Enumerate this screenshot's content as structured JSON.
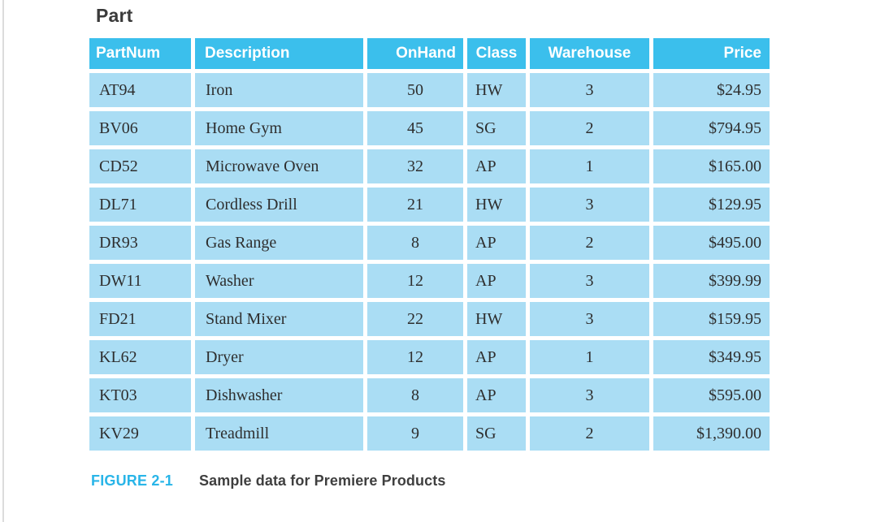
{
  "title": "Part",
  "table": {
    "columns": [
      {
        "key": "partnum",
        "label": "PartNum"
      },
      {
        "key": "description",
        "label": "Description"
      },
      {
        "key": "onhand",
        "label": "OnHand"
      },
      {
        "key": "class",
        "label": "Class"
      },
      {
        "key": "warehouse",
        "label": "Warehouse"
      },
      {
        "key": "price",
        "label": "Price"
      }
    ],
    "rows": [
      {
        "partnum": "AT94",
        "description": "Iron",
        "onhand": "50",
        "class": "HW",
        "warehouse": "3",
        "price": "$24.95"
      },
      {
        "partnum": "BV06",
        "description": "Home Gym",
        "onhand": "45",
        "class": "SG",
        "warehouse": "2",
        "price": "$794.95"
      },
      {
        "partnum": "CD52",
        "description": "Microwave Oven",
        "onhand": "32",
        "class": "AP",
        "warehouse": "1",
        "price": "$165.00"
      },
      {
        "partnum": "DL71",
        "description": "Cordless Drill",
        "onhand": "21",
        "class": "HW",
        "warehouse": "3",
        "price": "$129.95"
      },
      {
        "partnum": "DR93",
        "description": "Gas Range",
        "onhand": "8",
        "class": "AP",
        "warehouse": "2",
        "price": "$495.00"
      },
      {
        "partnum": "DW11",
        "description": "Washer",
        "onhand": "12",
        "class": "AP",
        "warehouse": "3",
        "price": "$399.99"
      },
      {
        "partnum": "FD21",
        "description": "Stand Mixer",
        "onhand": "22",
        "class": "HW",
        "warehouse": "3",
        "price": "$159.95"
      },
      {
        "partnum": "KL62",
        "description": "Dryer",
        "onhand": "12",
        "class": "AP",
        "warehouse": "1",
        "price": "$349.95"
      },
      {
        "partnum": "KT03",
        "description": "Dishwasher",
        "onhand": "8",
        "class": "AP",
        "warehouse": "3",
        "price": "$595.00"
      },
      {
        "partnum": "KV29",
        "description": "Treadmill",
        "onhand": "9",
        "class": "SG",
        "warehouse": "2",
        "price": "$1,390.00"
      }
    ]
  },
  "caption": {
    "label": "FIGURE 2-1",
    "text": "Sample data for Premiere Products"
  },
  "colors": {
    "header_bg": "#3bbfec",
    "cell_bg": "#aaddf4",
    "accent": "#29b5e8",
    "body_text": "#2e2e2e"
  }
}
